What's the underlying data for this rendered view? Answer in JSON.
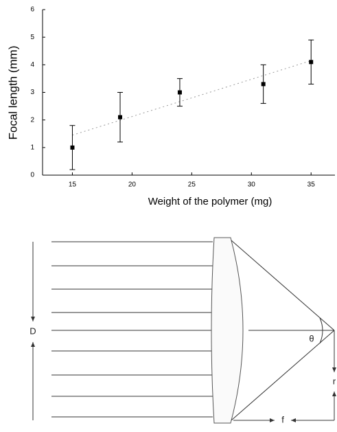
{
  "chart_data": {
    "type": "scatter",
    "xlabel": "Weight of the polymer (mg)",
    "ylabel": "Focal length (mm)",
    "x": [
      15,
      19,
      24,
      31,
      35
    ],
    "values": [
      1.0,
      2.1,
      3.0,
      3.3,
      4.1
    ],
    "errors": [
      0.8,
      0.9,
      0.5,
      0.7,
      0.8
    ],
    "color": "#000000",
    "trend_line": {
      "x": [
        15,
        35
      ],
      "values": [
        1.45,
        4.15
      ],
      "color": "#999999"
    },
    "xlim": [
      12.5,
      37
    ],
    "xticks": [
      15,
      20,
      25,
      30,
      35
    ],
    "ylim": [
      0,
      6
    ],
    "yticks": [
      0,
      1,
      2,
      3,
      4,
      5,
      6
    ]
  },
  "diagram": {
    "labels": {
      "d": "D",
      "theta": "θ",
      "r": "r",
      "f": "f"
    }
  }
}
